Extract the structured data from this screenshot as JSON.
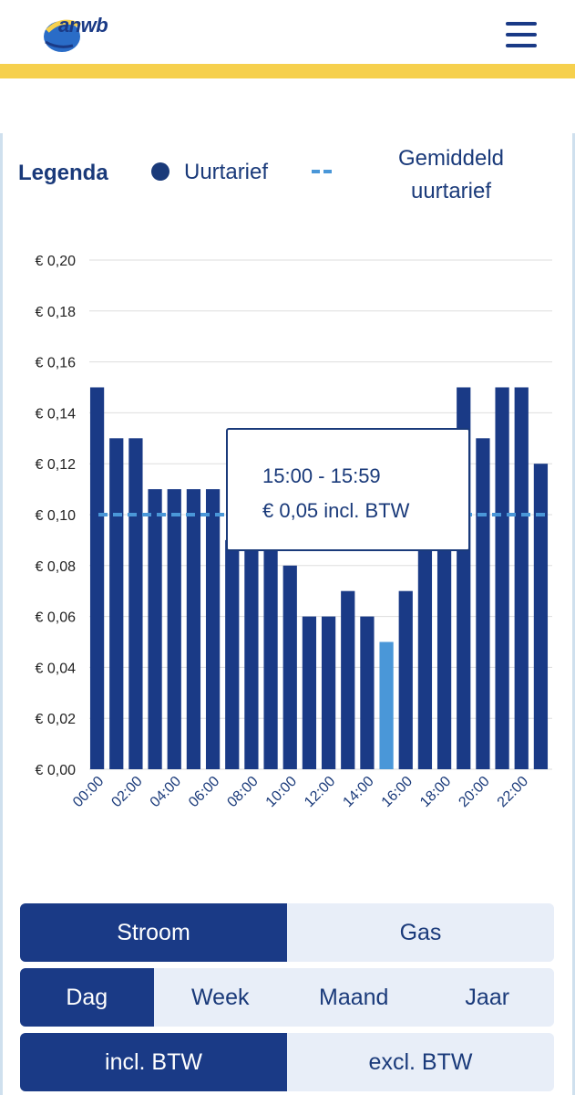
{
  "header": {
    "logo_text": "anwb",
    "menu_icon": "hamburger-menu-icon",
    "accent_color": "#f6d04d",
    "brand_color": "#1a3a86"
  },
  "legend": {
    "title": "Legenda",
    "series_label": "Uurtarief",
    "avg_label_line1": "Gemiddeld",
    "avg_label_line2": "uurtarief"
  },
  "tooltip": {
    "time": "15:00 - 15:59",
    "value": "€ 0,05 incl. BTW"
  },
  "chart_data": {
    "type": "bar",
    "categories": [
      "00:00",
      "01:00",
      "02:00",
      "03:00",
      "04:00",
      "05:00",
      "06:00",
      "07:00",
      "08:00",
      "09:00",
      "10:00",
      "11:00",
      "12:00",
      "13:00",
      "14:00",
      "15:00",
      "16:00",
      "17:00",
      "18:00",
      "19:00",
      "20:00",
      "21:00",
      "22:00",
      "23:00"
    ],
    "x_tick_labels": [
      "00:00",
      "02:00",
      "04:00",
      "06:00",
      "08:00",
      "10:00",
      "12:00",
      "14:00",
      "16:00",
      "18:00",
      "20:00",
      "22:00"
    ],
    "values": [
      0.15,
      0.13,
      0.13,
      0.11,
      0.11,
      0.11,
      0.11,
      0.09,
      0.09,
      0.09,
      0.08,
      0.06,
      0.06,
      0.07,
      0.06,
      0.05,
      0.07,
      0.09,
      0.09,
      0.15,
      0.13,
      0.15,
      0.15,
      0.12
    ],
    "average": 0.1,
    "highlighted_index": 15,
    "ylim": [
      0,
      0.2
    ],
    "y_ticks": [
      "€ 0,00",
      "€ 0,02",
      "€ 0,04",
      "€ 0,06",
      "€ 0,08",
      "€ 0,10",
      "€ 0,12",
      "€ 0,14",
      "€ 0,16",
      "€ 0,18",
      "€ 0,20"
    ],
    "grid": true,
    "legend_placement": "top",
    "colors": {
      "bar": "#1a3a86",
      "highlight": "#4a97d8",
      "average": "#4a97d8",
      "grid": "#dddddd"
    }
  },
  "controls": {
    "energy": [
      {
        "label": "Stroom",
        "active": true
      },
      {
        "label": "Gas",
        "active": false
      }
    ],
    "period": [
      {
        "label": "Dag",
        "active": true
      },
      {
        "label": "Week",
        "active": false
      },
      {
        "label": "Maand",
        "active": false
      },
      {
        "label": "Jaar",
        "active": false
      }
    ],
    "tax": [
      {
        "label": "incl. BTW",
        "active": true
      },
      {
        "label": "excl. BTW",
        "active": false
      }
    ]
  }
}
